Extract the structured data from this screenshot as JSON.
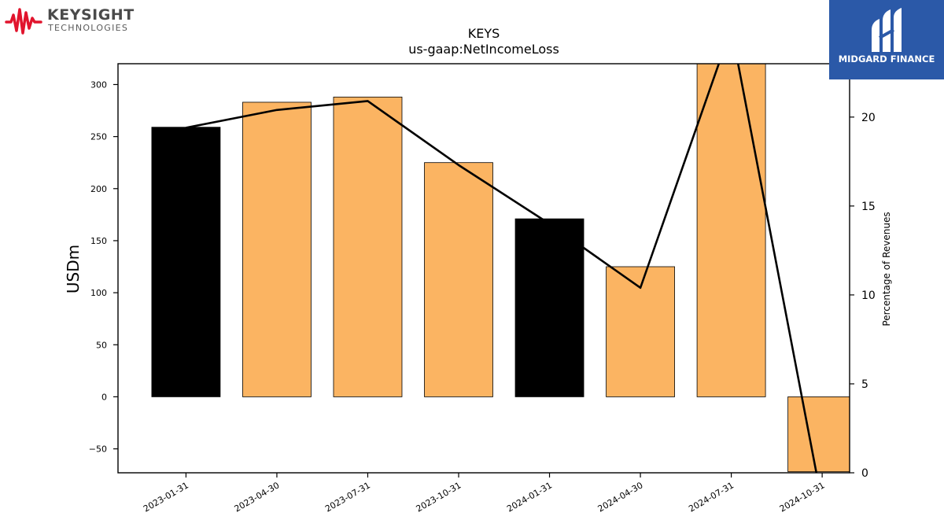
{
  "logos": {
    "left_brand": "KEYSIGHT",
    "left_sub": "TECHNOLOGIES",
    "right_brand": "MIDGARD FINANCE"
  },
  "colors": {
    "bar_actual": "#000000",
    "bar_estimate": "#fbb462",
    "line": "#000000",
    "logo_wave": "#e1142d",
    "logo_box": "#2b59a8"
  },
  "chart_data": {
    "type": "bar",
    "title": "KEYS",
    "subtitle": "us-gaap:NetIncomeLoss",
    "ylabel": "USDm",
    "y2label": "Percentage of Revenues",
    "categories": [
      "2023-01-31",
      "2023-04-30",
      "2023-07-31",
      "2023-10-31",
      "2024-01-31",
      "2024-04-30",
      "2024-07-31",
      "2024-10-31"
    ],
    "values": [
      259,
      283,
      288,
      225,
      171,
      125,
      362,
      -72
    ],
    "bar_style": [
      "dark",
      "light",
      "light",
      "light",
      "dark",
      "light",
      "light",
      "light"
    ],
    "line_series": {
      "axis": "right",
      "values": [
        19.4,
        20.4,
        20.9,
        17.3,
        14.0,
        10.4,
        25.0,
        -1.7
      ]
    },
    "ylim": [
      -73,
      320
    ],
    "y2lim": [
      0,
      23
    ],
    "yticks": [
      -50,
      0,
      50,
      100,
      150,
      200,
      250,
      300
    ],
    "y2ticks": [
      0,
      5,
      10,
      15,
      20
    ],
    "grid": false
  }
}
